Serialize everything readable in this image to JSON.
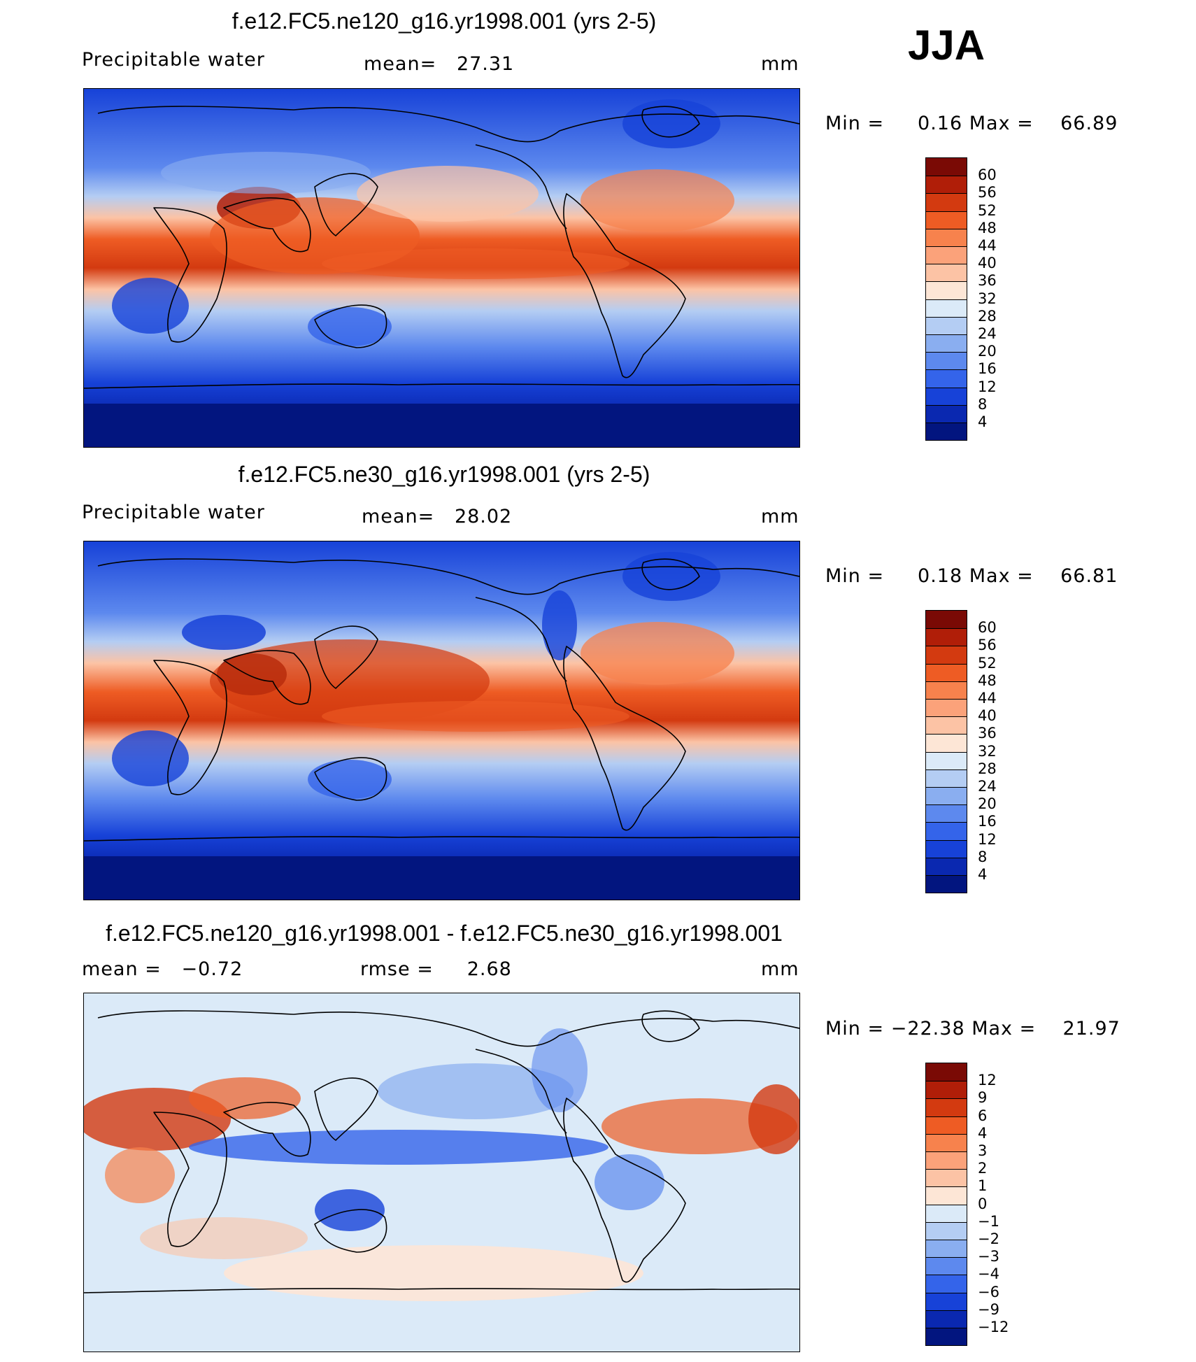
{
  "season": "JJA",
  "panels": [
    {
      "title": "f.e12.FC5.ne120_g16.yr1998.001 (yrs 2-5)",
      "left_label": "Precipitable water",
      "center_label": "mean=   27.31",
      "units": "mm",
      "minmax": "Min =     0.16 Max =    66.89",
      "colorbar": {
        "ticks": [
          "60",
          "56",
          "52",
          "48",
          "44",
          "40",
          "36",
          "32",
          "28",
          "24",
          "20",
          "16",
          "12",
          "8",
          "4"
        ],
        "colors": [
          "#7a0a05",
          "#b01e08",
          "#d33a10",
          "#ee5c24",
          "#f7824d",
          "#fba27a",
          "#fcc3a5",
          "#fde6d6",
          "#dbeaf8",
          "#b4cdf3",
          "#8aaef0",
          "#5d89ee",
          "#3464ea",
          "#1742d8",
          "#0a28b0",
          "#02157f"
        ]
      }
    },
    {
      "title": "f.e12.FC5.ne30_g16.yr1998.001 (yrs 2-5)",
      "left_label": "Precipitable water",
      "center_label": "mean=   28.02",
      "units": "mm",
      "minmax": "Min =     0.18 Max =    66.81",
      "colorbar": {
        "ticks": [
          "60",
          "56",
          "52",
          "48",
          "44",
          "40",
          "36",
          "32",
          "28",
          "24",
          "20",
          "16",
          "12",
          "8",
          "4"
        ],
        "colors": [
          "#7a0a05",
          "#b01e08",
          "#d33a10",
          "#ee5c24",
          "#f7824d",
          "#fba27a",
          "#fcc3a5",
          "#fde6d6",
          "#dbeaf8",
          "#b4cdf3",
          "#8aaef0",
          "#5d89ee",
          "#3464ea",
          "#1742d8",
          "#0a28b0",
          "#02157f"
        ]
      }
    },
    {
      "title": "f.e12.FC5.ne120_g16.yr1998.001 - f.e12.FC5.ne30_g16.yr1998.001",
      "left_label": "mean =   −0.72",
      "center_label": "rmse =     2.68",
      "units": "mm",
      "minmax": "Min = −22.38 Max =    21.97",
      "colorbar": {
        "ticks": [
          "12",
          "9",
          "6",
          "4",
          "3",
          "2",
          "1",
          "0",
          "−1",
          "−2",
          "−3",
          "−4",
          "−6",
          "−9",
          "−12"
        ],
        "colors": [
          "#7a0a05",
          "#b01e08",
          "#d33a10",
          "#ee5c24",
          "#f7824d",
          "#fba27a",
          "#fcc3a5",
          "#fde6d6",
          "#dbeaf8",
          "#b4cdf3",
          "#8aaef0",
          "#5d89ee",
          "#3464ea",
          "#1742d8",
          "#0a28b0",
          "#02157f"
        ]
      }
    }
  ]
}
